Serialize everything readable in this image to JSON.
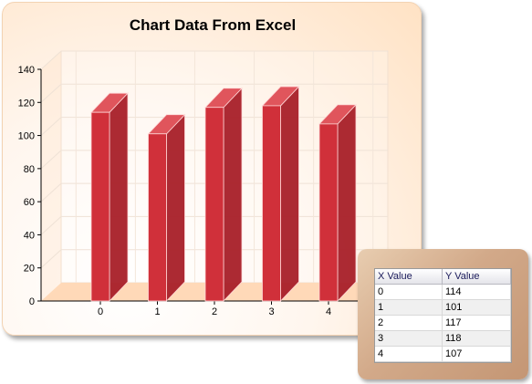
{
  "chart_data": {
    "type": "bar",
    "title": "Chart Data From Excel",
    "categories": [
      "0",
      "1",
      "2",
      "3",
      "4"
    ],
    "values": [
      114,
      101,
      117,
      118,
      107
    ],
    "y_ticks": [
      "0",
      "20",
      "40",
      "60",
      "80",
      "100",
      "120",
      "140"
    ],
    "ylim": [
      0,
      140
    ],
    "grid": true,
    "bar_color": "#d0303a",
    "style": "3d"
  },
  "data_table": {
    "headers": [
      "X Value",
      "Y Value"
    ],
    "rows": [
      [
        "0",
        "114"
      ],
      [
        "1",
        "101"
      ],
      [
        "2",
        "117"
      ],
      [
        "3",
        "118"
      ],
      [
        "4",
        "107"
      ]
    ]
  }
}
